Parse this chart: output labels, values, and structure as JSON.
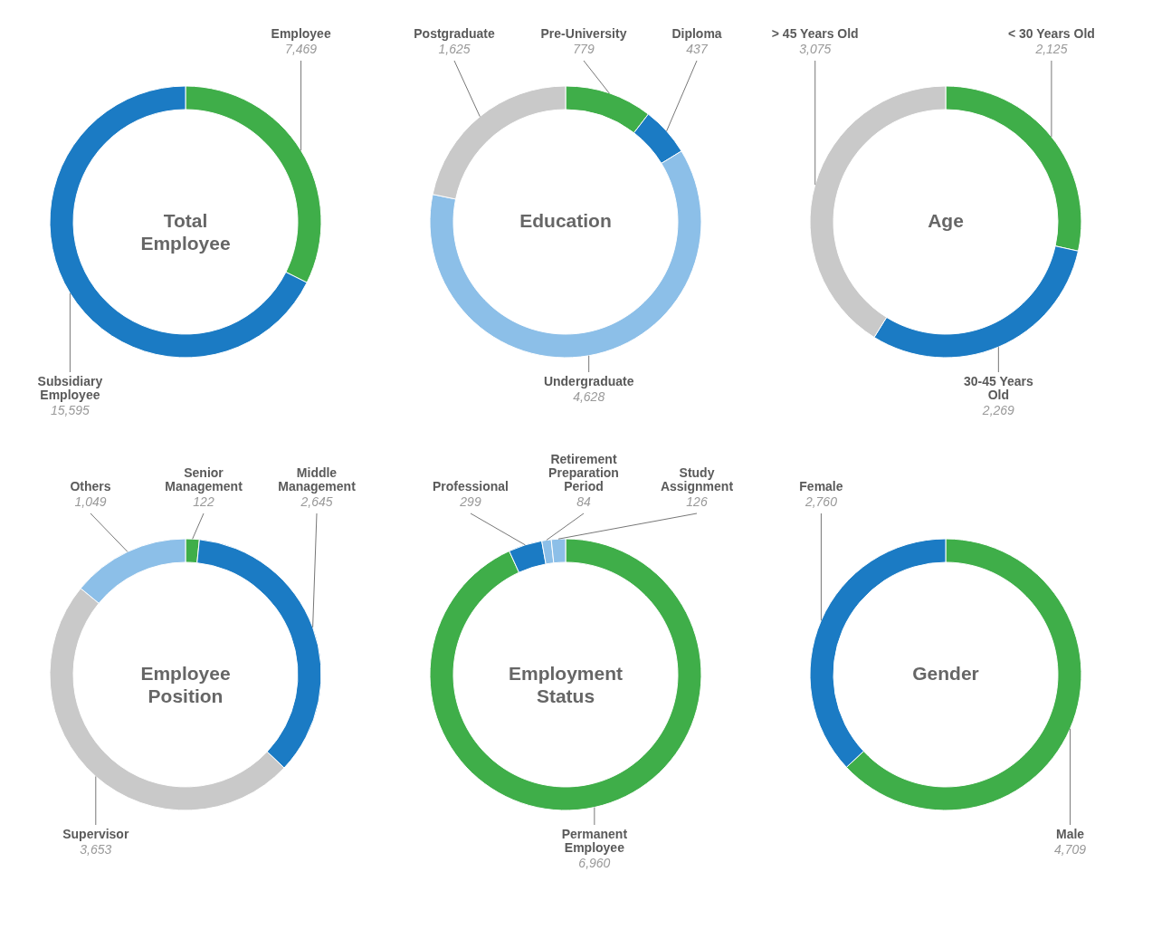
{
  "chart_data": [
    {
      "type": "donut",
      "title": "Total Employee",
      "categories": [
        "Employee",
        "Subsidiary Employee"
      ],
      "values": [
        7469,
        15595
      ],
      "value_labels": [
        "7,469",
        "15,595"
      ],
      "colors": [
        "#3fae49",
        "#1b7bc4"
      ]
    },
    {
      "type": "donut",
      "title": "Education",
      "categories": [
        "Pre-University",
        "Diploma",
        "Undergraduate",
        "Postgraduate"
      ],
      "values": [
        779,
        437,
        4628,
        1625
      ],
      "value_labels": [
        "779",
        "437",
        "4,628",
        "1,625"
      ],
      "colors": [
        "#3fae49",
        "#1b7bc4",
        "#8cbfe8",
        "#c9c9c9"
      ]
    },
    {
      "type": "donut",
      "title": "Age",
      "categories": [
        "< 30 Years Old",
        "30-45 Years Old",
        "> 45 Years Old"
      ],
      "values": [
        2125,
        2269,
        3075
      ],
      "value_labels": [
        "2,125",
        "2,269",
        "3,075"
      ],
      "colors": [
        "#3fae49",
        "#1b7bc4",
        "#c9c9c9"
      ]
    },
    {
      "type": "donut",
      "title": "Employee Position",
      "categories": [
        "Senior Management",
        "Middle Management",
        "Supervisor",
        "Others"
      ],
      "values": [
        122,
        2645,
        3653,
        1049
      ],
      "value_labels": [
        "122",
        "2,645",
        "3,653",
        "1,049"
      ],
      "colors": [
        "#3fae49",
        "#1b7bc4",
        "#c9c9c9",
        "#8cbfe8"
      ]
    },
    {
      "type": "donut",
      "title": "Employment Status",
      "categories": [
        "Permanent Employee",
        "Professional",
        "Retirement Preparation Period",
        "Study Assignment"
      ],
      "values": [
        6960,
        299,
        84,
        126
      ],
      "value_labels": [
        "6,960",
        "299",
        "84",
        "126"
      ],
      "colors": [
        "#3fae49",
        "#1b7bc4",
        "#8cbfe8",
        "#8cbfe8"
      ]
    },
    {
      "type": "donut",
      "title": "Gender",
      "categories": [
        "Male",
        "Female"
      ],
      "values": [
        4709,
        2760
      ],
      "value_labels": [
        "4,709",
        "2,760"
      ],
      "colors": [
        "#3fae49",
        "#1b7bc4"
      ]
    }
  ]
}
